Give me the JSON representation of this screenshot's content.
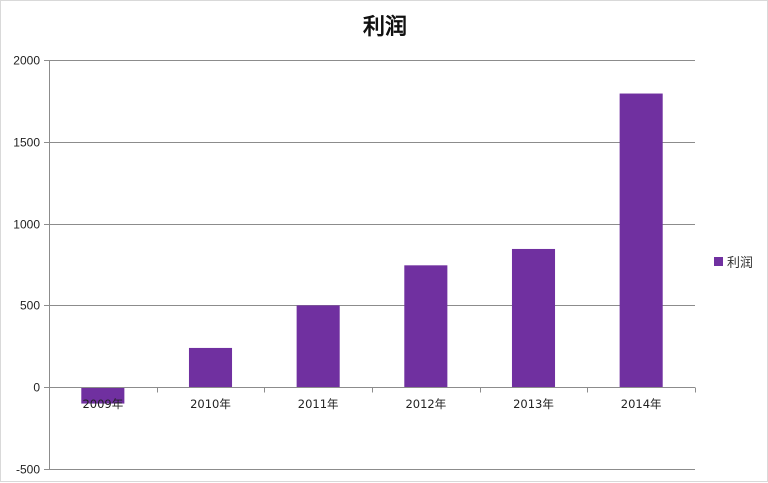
{
  "chart_data": {
    "type": "bar",
    "title": "利润",
    "categories": [
      "2009年",
      "2010年",
      "2011年",
      "2012年",
      "2013年",
      "2014年"
    ],
    "series": [
      {
        "name": "利润",
        "color": "#7030a0",
        "values": [
          -100,
          240,
          500,
          745,
          845,
          1795
        ]
      }
    ],
    "ylim": [
      -500,
      2000
    ],
    "yticks": [
      -500,
      0,
      500,
      1000,
      1500,
      2000
    ],
    "grid": true,
    "legend_position": "right"
  }
}
